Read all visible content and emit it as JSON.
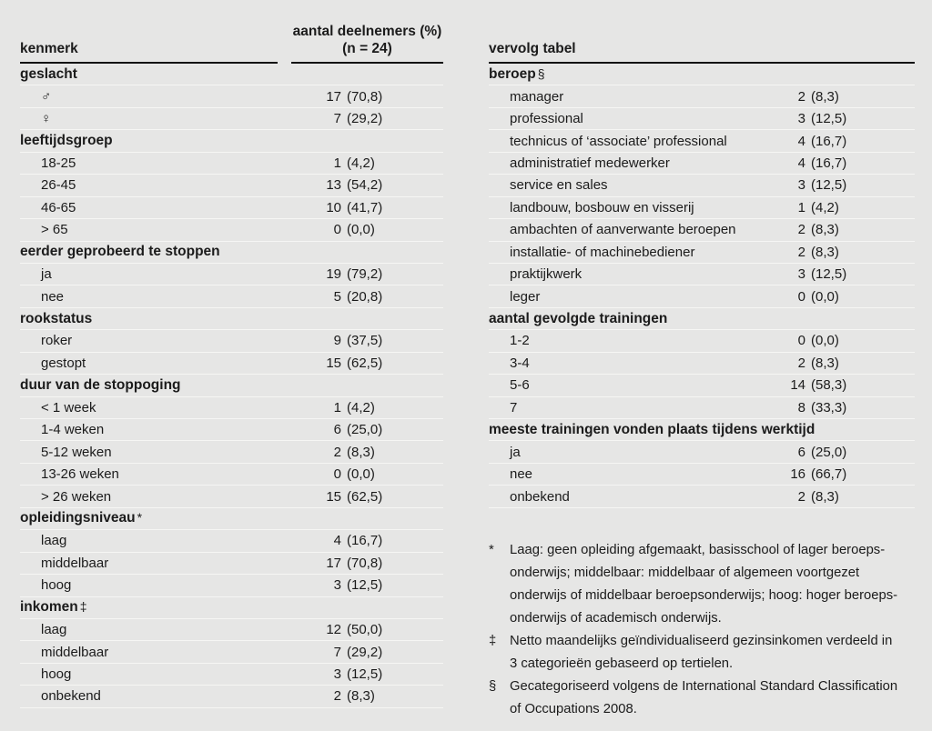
{
  "page": {
    "background": "#e6e6e5",
    "text_color": "#1b1b1b",
    "rule_color": "#111111",
    "separator_color": "#f6f6f4"
  },
  "left_table": {
    "header": {
      "col1": "kenmerk",
      "col2_line1": "aantal deelnemers (%)",
      "col2_line2": "(n = 24)"
    },
    "sections": [
      {
        "title": "geslacht",
        "marker": "",
        "rows": [
          {
            "label": "♂",
            "n": "17",
            "pct": "(70,8)"
          },
          {
            "label": "♀",
            "n": "7",
            "pct": "(29,2)"
          }
        ]
      },
      {
        "title": "leeftijdsgroep",
        "marker": "",
        "rows": [
          {
            "label": "18-25",
            "n": "1",
            "pct": "(4,2)"
          },
          {
            "label": "26-45",
            "n": "13",
            "pct": "(54,2)"
          },
          {
            "label": "46-65",
            "n": "10",
            "pct": "(41,7)"
          },
          {
            "label": "> 65",
            "n": "0",
            "pct": "(0,0)"
          }
        ]
      },
      {
        "title": "eerder geprobeerd te stoppen",
        "marker": "",
        "rows": [
          {
            "label": "ja",
            "n": "19",
            "pct": "(79,2)"
          },
          {
            "label": "nee",
            "n": "5",
            "pct": "(20,8)"
          }
        ]
      },
      {
        "title": "rookstatus",
        "marker": "",
        "rows": [
          {
            "label": "roker",
            "n": "9",
            "pct": "(37,5)"
          },
          {
            "label": "gestopt",
            "n": "15",
            "pct": "(62,5)"
          }
        ]
      },
      {
        "title": "duur van de stoppoging",
        "marker": "",
        "rows": [
          {
            "label": "< 1 week",
            "n": "1",
            "pct": "(4,2)"
          },
          {
            "label": "1-4 weken",
            "n": "6",
            "pct": "(25,0)"
          },
          {
            "label": "5-12 weken",
            "n": "2",
            "pct": "(8,3)"
          },
          {
            "label": "13-26 weken",
            "n": "0",
            "pct": "(0,0)"
          },
          {
            "label": "> 26 weken",
            "n": "15",
            "pct": "(62,5)"
          }
        ]
      },
      {
        "title": "opleidingsniveau",
        "marker": "*",
        "rows": [
          {
            "label": "laag",
            "n": "4",
            "pct": "(16,7)"
          },
          {
            "label": "middelbaar",
            "n": "17",
            "pct": "(70,8)"
          },
          {
            "label": "hoog",
            "n": "3",
            "pct": "(12,5)"
          }
        ]
      },
      {
        "title": "inkomen",
        "marker": "‡",
        "rows": [
          {
            "label": "laag",
            "n": "12",
            "pct": "(50,0)"
          },
          {
            "label": "middelbaar",
            "n": "7",
            "pct": "(29,2)"
          },
          {
            "label": "hoog",
            "n": "3",
            "pct": "(12,5)"
          },
          {
            "label": "onbekend",
            "n": "2",
            "pct": "(8,3)"
          }
        ]
      }
    ]
  },
  "right_table": {
    "header": {
      "title": "vervolg tabel"
    },
    "sections": [
      {
        "title": "beroep",
        "marker": "§",
        "rows": [
          {
            "label": "manager",
            "n": "2",
            "pct": "(8,3)"
          },
          {
            "label": "professional",
            "n": "3",
            "pct": "(12,5)"
          },
          {
            "label": "technicus of ‘associate’ professional",
            "n": "4",
            "pct": "(16,7)"
          },
          {
            "label": "administratief medewerker",
            "n": "4",
            "pct": "(16,7)"
          },
          {
            "label": "service en sales",
            "n": "3",
            "pct": "(12,5)"
          },
          {
            "label": "landbouw, bosbouw en visserij",
            "n": "1",
            "pct": "(4,2)"
          },
          {
            "label": "ambachten of aanverwante beroepen",
            "n": "2",
            "pct": "(8,3)"
          },
          {
            "label": "installatie- of machinebediener",
            "n": "2",
            "pct": "(8,3)"
          },
          {
            "label": "praktijkwerk",
            "n": "3",
            "pct": "(12,5)"
          },
          {
            "label": "leger",
            "n": "0",
            "pct": "(0,0)"
          }
        ]
      },
      {
        "title": "aantal gevolgde trainingen",
        "marker": "",
        "rows": [
          {
            "label": "1-2",
            "n": "0",
            "pct": "(0,0)"
          },
          {
            "label": "3-4",
            "n": "2",
            "pct": "(8,3)"
          },
          {
            "label": "5-6",
            "n": "14",
            "pct": "(58,3)"
          },
          {
            "label": "7",
            "n": "8",
            "pct": "(33,3)"
          }
        ]
      },
      {
        "title": "meeste trainingen vonden plaats tijdens werktijd",
        "marker": "",
        "rows": [
          {
            "label": "ja",
            "n": "6",
            "pct": "(25,0)"
          },
          {
            "label": "nee",
            "n": "16",
            "pct": "(66,7)"
          },
          {
            "label": "onbekend",
            "n": "2",
            "pct": "(8,3)"
          }
        ]
      }
    ]
  },
  "footnotes": [
    {
      "marker": "*",
      "lines": [
        "Laag: geen opleiding afgemaakt, basisschool of lager beroeps-",
        "onderwijs; middelbaar: middelbaar of algemeen voortgezet",
        "onderwijs of middelbaar beroepsonderwijs; hoog: hoger beroeps-",
        "onderwijs of academisch onderwijs."
      ]
    },
    {
      "marker": "‡",
      "lines": [
        "Netto maandelijks geïndividualiseerd gezinsinkomen verdeeld in",
        "3 categorieën gebaseerd op tertielen."
      ]
    },
    {
      "marker": "§",
      "lines": [
        "Gecategoriseerd volgens de International Standard Classification",
        "of Occupations 2008."
      ]
    }
  ]
}
